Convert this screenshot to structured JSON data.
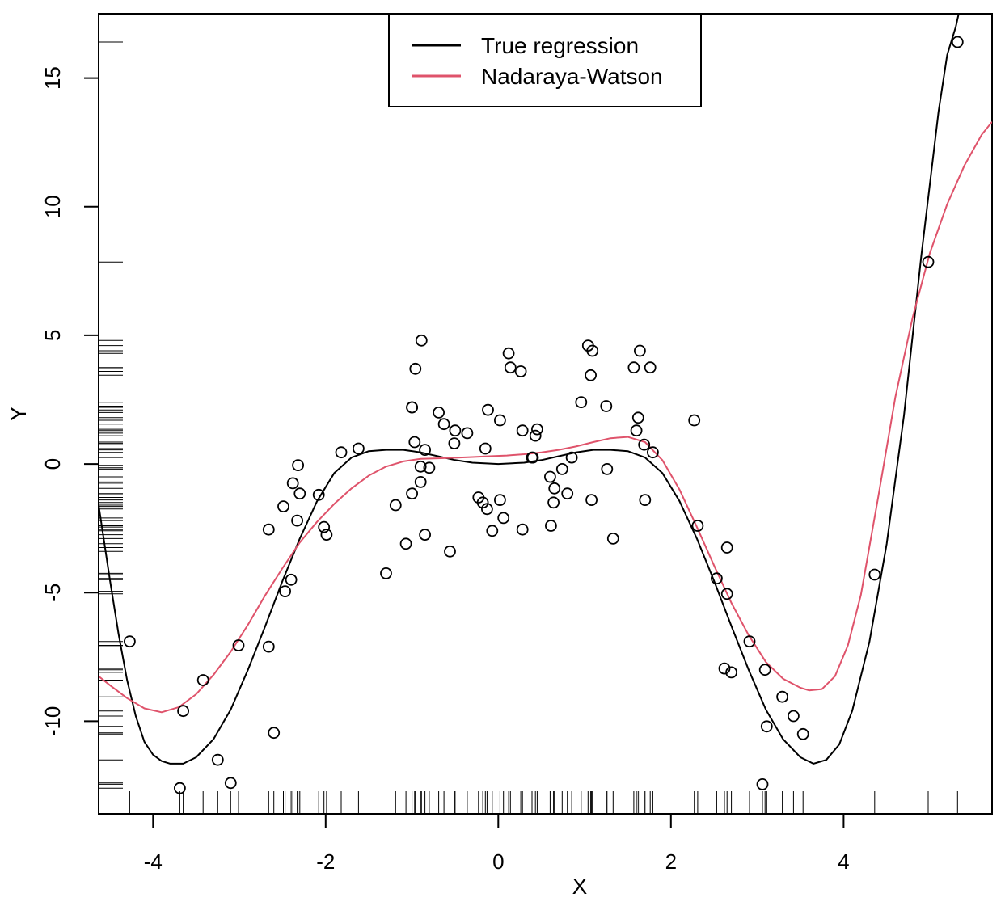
{
  "chart_data": {
    "type": "scatter",
    "title": "",
    "xlabel": "X",
    "ylabel": "Y",
    "xlim": [
      -4.63,
      5.72
    ],
    "ylim": [
      -13.6,
      17.5
    ],
    "xticks": [
      -4,
      -2,
      0,
      2,
      4
    ],
    "yticks": [
      -10,
      -5,
      0,
      5,
      10,
      15
    ],
    "xtick_labels": [
      "-4",
      "-2",
      "0",
      "2",
      "4"
    ],
    "ytick_labels": [
      "-10",
      "-5",
      "0",
      "5",
      "10",
      "15"
    ],
    "legend": {
      "position": "top-center",
      "entries": [
        {
          "label": "True regression",
          "color": "#000000"
        },
        {
          "label": "Nadaraya-Watson",
          "color": "#DF536B"
        }
      ]
    },
    "grid": false,
    "points": [
      [
        -4.27,
        -6.9
      ],
      [
        -3.69,
        -12.6
      ],
      [
        -3.65,
        -9.6
      ],
      [
        -3.42,
        -8.4
      ],
      [
        -3.25,
        -11.5
      ],
      [
        -3.1,
        -12.4
      ],
      [
        -3.01,
        -7.05
      ],
      [
        -2.66,
        -2.55
      ],
      [
        -2.66,
        -7.1
      ],
      [
        -2.6,
        -10.45
      ],
      [
        -2.49,
        -1.65
      ],
      [
        -2.47,
        -4.95
      ],
      [
        -2.4,
        -4.5
      ],
      [
        -2.38,
        -0.75
      ],
      [
        -2.33,
        -2.2
      ],
      [
        -2.32,
        -0.05
      ],
      [
        -2.3,
        -1.15
      ],
      [
        -2.08,
        -1.2
      ],
      [
        -2.02,
        -2.45
      ],
      [
        -1.99,
        -2.75
      ],
      [
        -1.82,
        0.45
      ],
      [
        -1.62,
        0.6
      ],
      [
        -1.3,
        -4.25
      ],
      [
        -1.19,
        -1.6
      ],
      [
        -1.07,
        -3.1
      ],
      [
        -1.0,
        2.2
      ],
      [
        -1.0,
        2.2
      ],
      [
        -1.0,
        -1.15
      ],
      [
        -0.97,
        0.85
      ],
      [
        -0.96,
        3.7
      ],
      [
        -0.9,
        -0.1
      ],
      [
        -0.9,
        -0.7
      ],
      [
        -0.89,
        4.8
      ],
      [
        -0.85,
        0.55
      ],
      [
        -0.85,
        -2.75
      ],
      [
        -0.8,
        -0.15
      ],
      [
        -0.69,
        2.0
      ],
      [
        -0.63,
        1.55
      ],
      [
        -0.56,
        -3.4
      ],
      [
        -0.51,
        0.8
      ],
      [
        -0.5,
        1.3
      ],
      [
        -0.36,
        1.2
      ],
      [
        -0.23,
        -1.3
      ],
      [
        -0.18,
        -1.5
      ],
      [
        -0.15,
        0.6
      ],
      [
        -0.13,
        -1.75
      ],
      [
        -0.12,
        2.1
      ],
      [
        -0.07,
        -2.6
      ],
      [
        0.02,
        -1.4
      ],
      [
        0.02,
        1.7
      ],
      [
        0.06,
        -2.1
      ],
      [
        0.12,
        4.3
      ],
      [
        0.14,
        3.75
      ],
      [
        0.26,
        3.6
      ],
      [
        0.28,
        1.3
      ],
      [
        0.28,
        -2.55
      ],
      [
        0.39,
        0.25
      ],
      [
        0.4,
        0.25
      ],
      [
        0.43,
        1.1
      ],
      [
        0.45,
        1.35
      ],
      [
        0.6,
        -0.5
      ],
      [
        0.61,
        -2.4
      ],
      [
        0.64,
        -1.5
      ],
      [
        0.65,
        -0.95
      ],
      [
        0.74,
        -0.2
      ],
      [
        0.8,
        -1.15
      ],
      [
        0.85,
        0.25
      ],
      [
        0.96,
        2.4
      ],
      [
        1.04,
        4.6
      ],
      [
        1.07,
        3.45
      ],
      [
        1.08,
        -1.4
      ],
      [
        1.09,
        4.4
      ],
      [
        1.25,
        2.25
      ],
      [
        1.26,
        -0.2
      ],
      [
        1.33,
        -2.9
      ],
      [
        1.57,
        3.75
      ],
      [
        1.6,
        1.3
      ],
      [
        1.62,
        1.8
      ],
      [
        1.64,
        4.4
      ],
      [
        1.69,
        0.75
      ],
      [
        1.7,
        -1.4
      ],
      [
        1.76,
        3.75
      ],
      [
        1.79,
        0.45
      ],
      [
        2.27,
        1.7
      ],
      [
        2.31,
        -2.4
      ],
      [
        2.53,
        -4.45
      ],
      [
        2.62,
        -7.95
      ],
      [
        2.65,
        -3.25
      ],
      [
        2.65,
        -5.05
      ],
      [
        2.7,
        -8.1
      ],
      [
        2.91,
        -6.9
      ],
      [
        3.06,
        -12.45
      ],
      [
        3.09,
        -8.0
      ],
      [
        3.11,
        -10.2
      ],
      [
        3.29,
        -9.05
      ],
      [
        3.42,
        -9.8
      ],
      [
        3.53,
        -10.5
      ],
      [
        4.36,
        -4.3
      ],
      [
        4.98,
        7.85
      ],
      [
        5.32,
        16.4
      ]
    ],
    "rug_x": [
      -4.27,
      -3.69,
      -3.65,
      -3.42,
      -3.25,
      -3.1,
      -3.01,
      -2.66,
      -2.6,
      -2.49,
      -2.47,
      -2.4,
      -2.38,
      -2.33,
      -2.32,
      -2.3,
      -2.08,
      -2.02,
      -1.99,
      -1.82,
      -1.62,
      -1.3,
      -1.19,
      -1.07,
      -1.0,
      -0.97,
      -0.96,
      -0.9,
      -0.89,
      -0.85,
      -0.8,
      -0.69,
      -0.63,
      -0.56,
      -0.51,
      -0.5,
      -0.36,
      -0.23,
      -0.18,
      -0.15,
      -0.13,
      -0.12,
      -0.07,
      0.02,
      0.06,
      0.12,
      0.14,
      0.26,
      0.28,
      0.39,
      0.43,
      0.45,
      0.6,
      0.61,
      0.64,
      0.65,
      0.74,
      0.8,
      0.85,
      0.96,
      1.04,
      1.07,
      1.08,
      1.09,
      1.25,
      1.26,
      1.33,
      1.57,
      1.6,
      1.62,
      1.64,
      1.69,
      1.7,
      1.76,
      1.79,
      2.27,
      2.31,
      2.53,
      2.62,
      2.65,
      2.7,
      2.91,
      3.06,
      3.09,
      3.11,
      3.29,
      3.42,
      3.53,
      4.36,
      4.98,
      5.32
    ],
    "rug_y": [
      16.4,
      7.85,
      4.8,
      4.6,
      4.4,
      4.3,
      3.75,
      3.7,
      3.6,
      3.45,
      2.4,
      2.25,
      2.2,
      2.1,
      2.0,
      1.8,
      1.7,
      1.55,
      1.35,
      1.3,
      1.2,
      1.1,
      0.85,
      0.8,
      0.75,
      0.6,
      0.55,
      0.45,
      0.25,
      -0.05,
      -0.15,
      -0.2,
      -0.5,
      -0.7,
      -0.75,
      -0.95,
      -1.15,
      -1.2,
      -1.3,
      -1.4,
      -1.5,
      -1.6,
      -1.65,
      -1.75,
      -2.1,
      -2.2,
      -2.4,
      -2.45,
      -2.55,
      -2.6,
      -2.75,
      -2.9,
      -3.1,
      -3.25,
      -3.4,
      -4.25,
      -4.3,
      -4.45,
      -4.5,
      -4.95,
      -5.05,
      -6.9,
      -7.05,
      -7.1,
      -7.95,
      -8.0,
      -8.1,
      -8.4,
      -9.05,
      -9.6,
      -9.8,
      -10.2,
      -10.45,
      -10.5,
      -11.5,
      -12.4,
      -12.45,
      -12.6
    ],
    "series": [
      {
        "name": "True regression",
        "color": "#000000",
        "points": [
          [
            -4.63,
            -1.6
          ],
          [
            -4.5,
            -4.5
          ],
          [
            -4.4,
            -6.6
          ],
          [
            -4.3,
            -8.4
          ],
          [
            -4.2,
            -9.8
          ],
          [
            -4.1,
            -10.8
          ],
          [
            -4.0,
            -11.3
          ],
          [
            -3.9,
            -11.55
          ],
          [
            -3.8,
            -11.65
          ],
          [
            -3.65,
            -11.65
          ],
          [
            -3.5,
            -11.4
          ],
          [
            -3.3,
            -10.7
          ],
          [
            -3.1,
            -9.55
          ],
          [
            -2.9,
            -8.0
          ],
          [
            -2.7,
            -6.3
          ],
          [
            -2.5,
            -4.55
          ],
          [
            -2.3,
            -2.9
          ],
          [
            -2.1,
            -1.45
          ],
          [
            -1.9,
            -0.35
          ],
          [
            -1.7,
            0.25
          ],
          [
            -1.5,
            0.5
          ],
          [
            -1.3,
            0.55
          ],
          [
            -1.1,
            0.55
          ],
          [
            -0.9,
            0.45
          ],
          [
            -0.7,
            0.3
          ],
          [
            -0.5,
            0.15
          ],
          [
            -0.3,
            0.05
          ],
          [
            0.0,
            0.0
          ],
          [
            0.3,
            0.05
          ],
          [
            0.5,
            0.15
          ],
          [
            0.7,
            0.3
          ],
          [
            0.9,
            0.45
          ],
          [
            1.1,
            0.55
          ],
          [
            1.3,
            0.55
          ],
          [
            1.5,
            0.5
          ],
          [
            1.7,
            0.25
          ],
          [
            1.9,
            -0.35
          ],
          [
            2.1,
            -1.45
          ],
          [
            2.3,
            -2.9
          ],
          [
            2.5,
            -4.55
          ],
          [
            2.7,
            -6.3
          ],
          [
            2.9,
            -8.0
          ],
          [
            3.1,
            -9.55
          ],
          [
            3.3,
            -10.7
          ],
          [
            3.5,
            -11.4
          ],
          [
            3.65,
            -11.65
          ],
          [
            3.8,
            -11.5
          ],
          [
            3.95,
            -10.9
          ],
          [
            4.1,
            -9.6
          ],
          [
            4.3,
            -6.9
          ],
          [
            4.5,
            -3.1
          ],
          [
            4.7,
            1.9
          ],
          [
            4.9,
            8.1
          ],
          [
            5.1,
            13.7
          ],
          [
            5.2,
            15.9
          ],
          [
            5.3,
            17.0
          ],
          [
            5.4,
            18.5
          ]
        ]
      },
      {
        "name": "Nadaraya-Watson",
        "color": "#DF536B",
        "points": [
          [
            -4.63,
            -8.25
          ],
          [
            -4.5,
            -8.6
          ],
          [
            -4.3,
            -9.1
          ],
          [
            -4.1,
            -9.5
          ],
          [
            -3.9,
            -9.65
          ],
          [
            -3.7,
            -9.45
          ],
          [
            -3.5,
            -8.95
          ],
          [
            -3.3,
            -8.2
          ],
          [
            -3.1,
            -7.3
          ],
          [
            -2.9,
            -6.25
          ],
          [
            -2.7,
            -5.1
          ],
          [
            -2.5,
            -4.05
          ],
          [
            -2.3,
            -3.05
          ],
          [
            -2.1,
            -2.25
          ],
          [
            -1.9,
            -1.55
          ],
          [
            -1.7,
            -0.95
          ],
          [
            -1.5,
            -0.45
          ],
          [
            -1.3,
            -0.1
          ],
          [
            -1.1,
            0.1
          ],
          [
            -0.9,
            0.2
          ],
          [
            -0.7,
            0.22
          ],
          [
            -0.5,
            0.24
          ],
          [
            -0.3,
            0.27
          ],
          [
            -0.1,
            0.3
          ],
          [
            0.1,
            0.33
          ],
          [
            0.3,
            0.38
          ],
          [
            0.5,
            0.45
          ],
          [
            0.7,
            0.55
          ],
          [
            0.9,
            0.68
          ],
          [
            1.1,
            0.85
          ],
          [
            1.3,
            1.0
          ],
          [
            1.5,
            1.05
          ],
          [
            1.7,
            0.85
          ],
          [
            1.9,
            0.15
          ],
          [
            2.1,
            -1.0
          ],
          [
            2.3,
            -2.45
          ],
          [
            2.5,
            -3.95
          ],
          [
            2.7,
            -5.4
          ],
          [
            2.9,
            -6.65
          ],
          [
            3.1,
            -7.7
          ],
          [
            3.3,
            -8.35
          ],
          [
            3.5,
            -8.7
          ],
          [
            3.6,
            -8.8
          ],
          [
            3.75,
            -8.75
          ],
          [
            3.9,
            -8.25
          ],
          [
            4.05,
            -7.05
          ],
          [
            4.2,
            -5.1
          ],
          [
            4.4,
            -1.3
          ],
          [
            4.6,
            2.6
          ],
          [
            4.8,
            5.7
          ],
          [
            5.0,
            8.2
          ],
          [
            5.2,
            10.1
          ],
          [
            5.4,
            11.6
          ],
          [
            5.6,
            12.8
          ],
          [
            5.72,
            13.3
          ]
        ]
      }
    ]
  }
}
